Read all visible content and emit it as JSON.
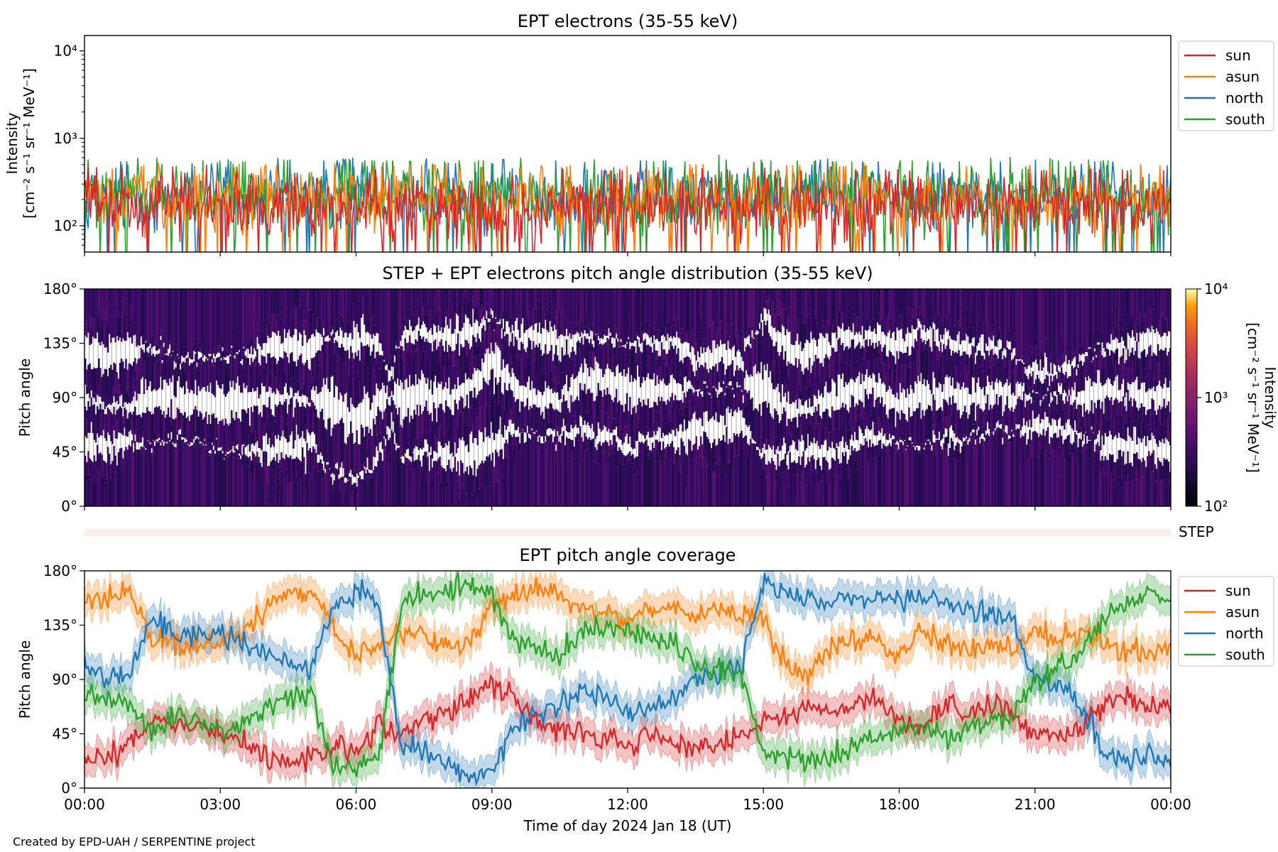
{
  "figure": {
    "credit": "Created by EPD-UAH / SERPENTINE project",
    "xlabel": "Time of day 2024 Jan 18 (UT)",
    "xticks": [
      "00:00",
      "03:00",
      "06:00",
      "09:00",
      "12:00",
      "15:00",
      "18:00",
      "21:00",
      "00:00"
    ]
  },
  "panels": {
    "intensity": {
      "title": "EPT electrons (35-55 keV)",
      "ylabel_line1": "Intensity",
      "ylabel_line2": "[cm⁻² s⁻¹ sr⁻¹ MeV⁻¹]",
      "yticks": [
        "10⁴",
        "10³",
        "10²"
      ]
    },
    "pad": {
      "title": "STEP + EPT electrons pitch angle distribution (35-55 keV)",
      "ylabel": "Pitch angle",
      "yticks": [
        "180°",
        "135°",
        "90°",
        "45°",
        "0°"
      ],
      "colorbar_label_line1": "Intensity",
      "colorbar_label_line2": "[cm⁻² s⁻¹ sr⁻¹ MeV⁻¹]",
      "colorbar_ticks": [
        "10⁴",
        "10³",
        "10²"
      ]
    },
    "step": {
      "label": "STEP"
    },
    "coverage": {
      "title": "EPT pitch angle coverage",
      "ylabel": "Pitch angle",
      "yticks": [
        "180°",
        "135°",
        "90°",
        "45°",
        "0°"
      ]
    }
  },
  "legend": [
    "sun",
    "asun",
    "north",
    "south"
  ],
  "colors": {
    "sun": "#d62728",
    "asun": "#ff7f0e",
    "north": "#1f77b4",
    "south": "#2ca02c"
  },
  "chart_data": [
    {
      "type": "line",
      "title": "EPT electrons (35-55 keV)",
      "xlabel": "",
      "ylabel": "Intensity [cm⁻² s⁻¹ sr⁻¹ MeV⁻¹]",
      "y_scale": "log",
      "ylim": [
        50,
        15000
      ],
      "xlim": [
        "2024-01-18 00:00",
        "2024-01-19 00:00"
      ],
      "legend_position": "outside-right",
      "series_typical": [
        {
          "name": "sun",
          "typical_range": [
            60,
            400
          ]
        },
        {
          "name": "asun",
          "typical_range": [
            60,
            450
          ]
        },
        {
          "name": "north",
          "typical_range": [
            60,
            500
          ]
        },
        {
          "name": "south",
          "typical_range": [
            60,
            500
          ]
        }
      ],
      "x": [
        "00:00",
        "01:00",
        "02:00",
        "03:00",
        "04:00",
        "05:00",
        "06:00",
        "07:00",
        "08:00",
        "09:00",
        "10:00",
        "11:00",
        "12:00",
        "13:00",
        "14:00",
        "15:00",
        "16:00",
        "17:00",
        "18:00",
        "19:00",
        "20:00",
        "21:00",
        "22:00",
        "23:00"
      ],
      "series": [
        {
          "name": "sun",
          "values": [
            180,
            170,
            175,
            165,
            170,
            160,
            170,
            165,
            160,
            150,
            170,
            165,
            160,
            175,
            170,
            165,
            160,
            170,
            165,
            170,
            160,
            165,
            170,
            165
          ]
        },
        {
          "name": "asun",
          "values": [
            200,
            190,
            185,
            180,
            190,
            200,
            185,
            190,
            180,
            175,
            190,
            185,
            190,
            195,
            185,
            190,
            185,
            190,
            180,
            185,
            190,
            185,
            190,
            195
          ]
        },
        {
          "name": "north",
          "values": [
            210,
            220,
            200,
            210,
            230,
            215,
            205,
            210,
            200,
            220,
            210,
            205,
            215,
            210,
            205,
            210,
            220,
            210,
            205,
            215,
            210,
            220,
            210,
            205
          ]
        },
        {
          "name": "south",
          "values": [
            220,
            230,
            215,
            210,
            220,
            225,
            215,
            210,
            215,
            230,
            210,
            220,
            215,
            210,
            220,
            215,
            210,
            225,
            215,
            210,
            230,
            220,
            215,
            210
          ]
        }
      ]
    },
    {
      "type": "heatmap",
      "title": "STEP + EPT electrons pitch angle distribution (35-55 keV)",
      "ylabel": "Pitch angle",
      "ylim": [
        0,
        180
      ],
      "colorbar": {
        "label": "Intensity [cm⁻² s⁻¹ sr⁻¹ MeV⁻¹]",
        "scale": "log",
        "range": [
          100,
          10000
        ],
        "colormap": "inferno"
      },
      "typical_value": 150
    },
    {
      "type": "line",
      "title": "EPT pitch angle coverage",
      "ylabel": "Pitch angle",
      "ylim": [
        0,
        180
      ],
      "xlim": [
        "2024-01-18 00:00",
        "2024-01-19 00:00"
      ],
      "legend_position": "outside-right",
      "x": [
        "00:00",
        "00:30",
        "01:00",
        "01:30",
        "02:00",
        "02:30",
        "03:00",
        "03:30",
        "04:00",
        "04:30",
        "05:00",
        "05:30",
        "06:00",
        "06:30",
        "07:00",
        "07:30",
        "08:00",
        "08:30",
        "09:00",
        "09:30",
        "10:00",
        "10:30",
        "11:00",
        "11:30",
        "12:00",
        "12:30",
        "13:00",
        "13:30",
        "14:00",
        "14:30",
        "15:00",
        "15:30",
        "16:00",
        "16:30",
        "17:00",
        "17:30",
        "18:00",
        "18:30",
        "19:00",
        "19:30",
        "20:00",
        "20:30",
        "21:00",
        "21:30",
        "22:00",
        "22:30",
        "23:00",
        "23:30",
        "24:00"
      ],
      "series": [
        {
          "name": "sun",
          "values": [
            20,
            25,
            35,
            55,
            55,
            50,
            45,
            40,
            25,
            20,
            25,
            35,
            30,
            55,
            45,
            60,
            60,
            75,
            85,
            75,
            55,
            50,
            45,
            40,
            35,
            45,
            40,
            30,
            35,
            45,
            55,
            60,
            70,
            60,
            70,
            75,
            55,
            50,
            70,
            60,
            70,
            60,
            45,
            45,
            50,
            70,
            75,
            65,
            70
          ]
        },
        {
          "name": "asun",
          "values": [
            160,
            155,
            165,
            125,
            120,
            115,
            120,
            130,
            150,
            160,
            160,
            130,
            110,
            120,
            125,
            130,
            115,
            120,
            150,
            160,
            165,
            160,
            150,
            145,
            140,
            150,
            150,
            145,
            150,
            145,
            140,
            100,
            95,
            120,
            125,
            120,
            110,
            130,
            120,
            115,
            120,
            115,
            130,
            125,
            130,
            120,
            115,
            110,
            120
          ]
        },
        {
          "name": "north",
          "values": [
            100,
            90,
            95,
            140,
            130,
            125,
            130,
            120,
            110,
            105,
            100,
            150,
            165,
            150,
            35,
            30,
            20,
            10,
            15,
            50,
            60,
            70,
            80,
            75,
            60,
            65,
            75,
            90,
            95,
            100,
            170,
            160,
            155,
            150,
            160,
            160,
            155,
            160,
            155,
            150,
            145,
            140,
            90,
            85,
            70,
            30,
            20,
            30,
            20
          ]
        },
        {
          "name": "south",
          "values": [
            80,
            75,
            70,
            45,
            60,
            55,
            50,
            55,
            65,
            75,
            80,
            20,
            15,
            25,
            155,
            160,
            165,
            170,
            160,
            120,
            115,
            110,
            130,
            135,
            130,
            125,
            120,
            105,
            95,
            95,
            30,
            25,
            20,
            25,
            35,
            40,
            45,
            50,
            40,
            50,
            55,
            60,
            90,
            100,
            110,
            140,
            150,
            160,
            160
          ]
        }
      ]
    }
  ]
}
